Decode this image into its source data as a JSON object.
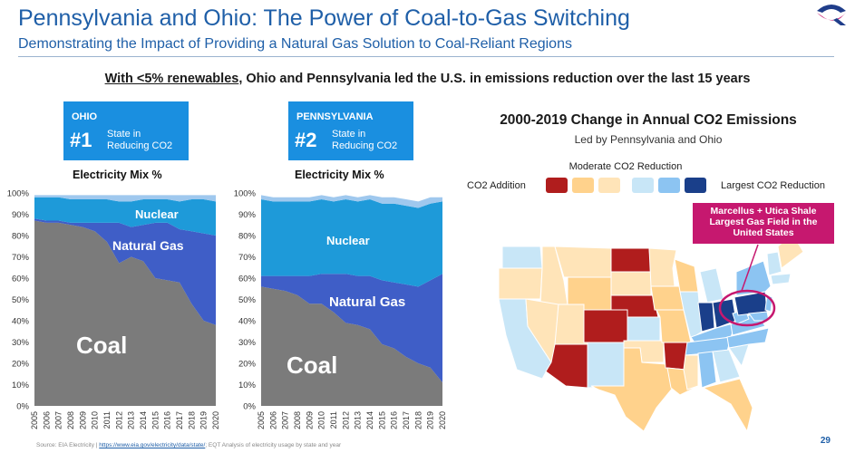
{
  "slide": {
    "title": "Pennsylvania and Ohio: The Power of Coal-to-Gas Switching",
    "subtitle": "Demonstrating the Impact of Providing a Natural Gas Solution to Coal-Reliant Regions",
    "headline_lead": "With <5% renewables",
    "headline_rest": ", Ohio and Pennsylvania led the U.S. in emissions reduction over the last 15 years",
    "source_prefix": "Source: EIA Electricity | ",
    "source_link": "https://www.eia.gov/electricity/data/state/",
    "source_suffix": "; EQT Analysis of electricity usage by state and year",
    "page_number": "29",
    "logo_icon": "eqt-logo-icon",
    "accent_color": "#1f5fa8"
  },
  "ohio_box": {
    "state": "OHIO",
    "rank": "#1",
    "label_line1": "State in",
    "label_line2": "Reducing CO2",
    "color": "#1a8fe0"
  },
  "pa_box": {
    "state": "PENNSYLVANIA",
    "rank": "#2",
    "label_line1": "State in",
    "label_line2": "Reducing CO2",
    "color": "#1a8fe0"
  },
  "chart_data": [
    {
      "type": "area",
      "title": "Electricity Mix %",
      "x": [
        "2005",
        "2006",
        "2007",
        "2008",
        "2009",
        "2010",
        "2011",
        "2012",
        "2013",
        "2014",
        "2015",
        "2016",
        "2017",
        "2018",
        "2019",
        "2020"
      ],
      "ylim": [
        0,
        100
      ],
      "yticks": [
        "0%",
        "10%",
        "20%",
        "30%",
        "40%",
        "50%",
        "60%",
        "70%",
        "80%",
        "90%",
        "100%"
      ],
      "stacked": true,
      "series": [
        {
          "name": "Coal",
          "color": "#7b7b7b",
          "values": [
            87,
            86,
            86,
            85,
            84,
            82,
            77,
            67,
            70,
            68,
            60,
            59,
            58,
            48,
            40,
            38
          ]
        },
        {
          "name": "Natural Gas",
          "color": "#3f5ec7",
          "values": [
            1,
            1,
            1,
            1,
            2,
            4,
            9,
            19,
            14,
            17,
            26,
            27,
            25,
            34,
            41,
            42
          ]
        },
        {
          "name": "Nuclear",
          "color": "#1e9ad9",
          "values": [
            10,
            11,
            11,
            11,
            11,
            11,
            11,
            10,
            12,
            12,
            11,
            11,
            13,
            15,
            16,
            16
          ]
        },
        {
          "name": "",
          "color": "#9fc8ee",
          "values": [
            1,
            1,
            1,
            2,
            2,
            2,
            2,
            3,
            3,
            2,
            2,
            2,
            3,
            2,
            2,
            3
          ]
        }
      ],
      "labels": {
        "coal": "Coal",
        "gas": "Natural Gas",
        "nuclear": "Nuclear"
      }
    },
    {
      "type": "area",
      "title": "Electricity Mix %",
      "x": [
        "2005",
        "2006",
        "2007",
        "2008",
        "2009",
        "2010",
        "2011",
        "2012",
        "2013",
        "2014",
        "2015",
        "2016",
        "2017",
        "2018",
        "2019",
        "2020"
      ],
      "ylim": [
        0,
        100
      ],
      "yticks": [
        "0%",
        "10%",
        "20%",
        "30%",
        "40%",
        "50%",
        "60%",
        "70%",
        "80%",
        "90%",
        "100%"
      ],
      "stacked": true,
      "series": [
        {
          "name": "Coal",
          "color": "#7b7b7b",
          "values": [
            56,
            55,
            54,
            52,
            48,
            48,
            44,
            39,
            38,
            36,
            29,
            27,
            23,
            20,
            18,
            11
          ]
        },
        {
          "name": "Natural Gas",
          "color": "#3f5ec7",
          "values": [
            5,
            6,
            7,
            9,
            13,
            14,
            18,
            23,
            23,
            25,
            30,
            31,
            34,
            36,
            41,
            51
          ]
        },
        {
          "name": "Nuclear",
          "color": "#1e9ad9",
          "values": [
            36,
            35,
            35,
            35,
            35,
            35,
            34,
            35,
            35,
            36,
            36,
            37,
            37,
            37,
            36,
            34
          ]
        },
        {
          "name": "",
          "color": "#9fc8ee",
          "values": [
            2,
            2,
            2,
            2,
            2,
            2,
            2,
            2,
            2,
            2,
            3,
            3,
            3,
            3,
            3,
            2
          ]
        }
      ],
      "labels": {
        "coal": "Coal",
        "gas": "Natural Gas",
        "nuclear": "Nuclear"
      }
    }
  ],
  "map": {
    "title": "2000-2019 Change in Annual CO2 Emissions",
    "subtitle": "Led by Pennsylvania and Ohio",
    "legend_mid": "Moderate CO2 Reduction",
    "legend_left": "CO2 Addition",
    "legend_right": "Largest CO2 Reduction",
    "legend_colors": [
      "#b01d1d",
      "#ffd28c",
      "#ffe4b8",
      "#c8e6f7",
      "#8cc4f2",
      "#1a3f8a"
    ],
    "callout_line1": "Marcellus + Utica Shale",
    "callout_line2": "Largest Gas Field in the",
    "callout_line3": "United States",
    "callout_color": "#c6186f"
  }
}
